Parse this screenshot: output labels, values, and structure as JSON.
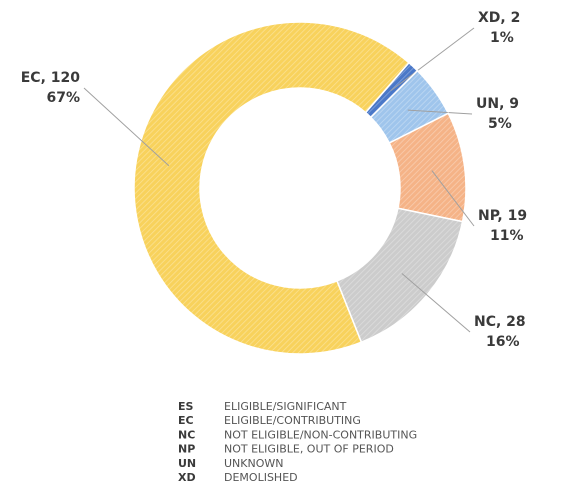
{
  "chart_data": {
    "type": "donut",
    "categories": [
      "XD",
      "UN",
      "NP",
      "NC",
      "EC"
    ],
    "values": [
      2,
      9,
      19,
      28,
      120
    ],
    "value_labels": [
      "XD, 2",
      "UN, 9",
      "NP, 19",
      "NC, 28",
      "EC, 120"
    ],
    "percents": [
      1,
      5,
      11,
      16,
      67
    ],
    "percent_labels": [
      "1%",
      "5%",
      "11%",
      "16%",
      "67%"
    ],
    "colors": [
      "#4a78c8",
      "#9fc5ec",
      "#f5b387",
      "#cccccc",
      "#f8d25c"
    ],
    "legend": [
      {
        "code": "ES",
        "description": "ELIGIBLE/SIGNIFICANT"
      },
      {
        "code": "EC",
        "description": "ELIGIBLE/CONTRIBUTING"
      },
      {
        "code": "NC",
        "description": "NOT ELIGIBLE/NON-CONTRIBUTING"
      },
      {
        "code": "NP",
        "description": "NOT ELIGIBLE, OUT OF PERIOD"
      },
      {
        "code": "UN",
        "description": "UNKNOWN"
      },
      {
        "code": "XD",
        "description": "DEMOLISHED"
      }
    ]
  }
}
